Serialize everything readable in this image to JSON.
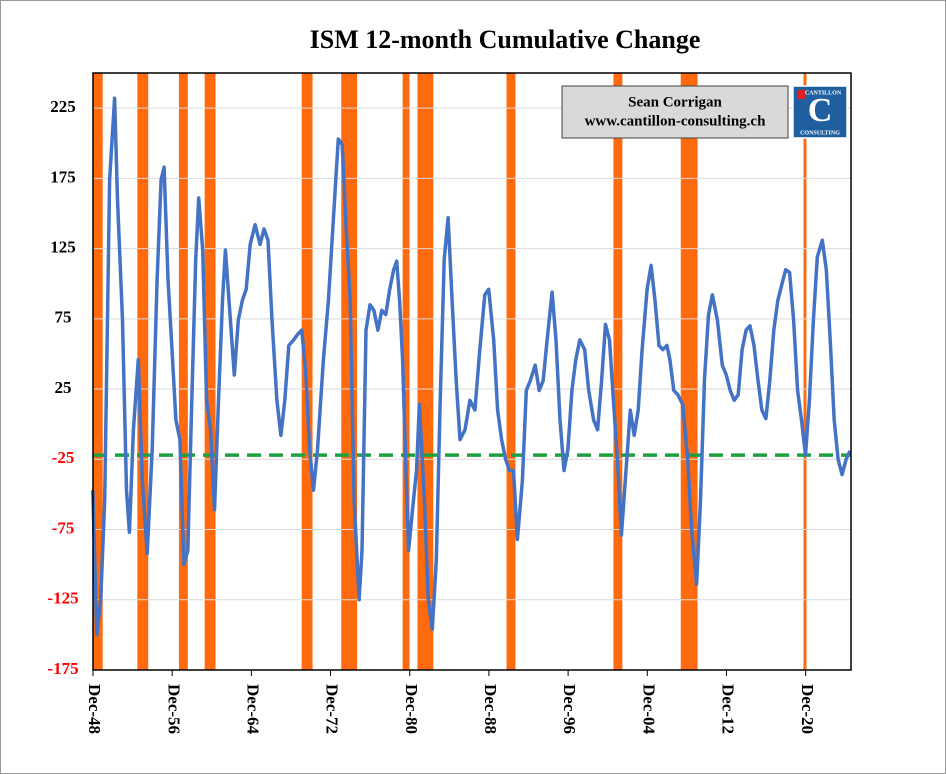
{
  "chart_data": {
    "type": "line",
    "title": "ISM 12-month Cumulative Change",
    "annotation": [
      "Sean Corrigan",
      "www.cantillon-consulting.ch"
    ],
    "logo": [
      "CANTILLON",
      "CONSULTING"
    ],
    "xlim": [
      1948.92,
      2025.5
    ],
    "ylim": [
      -175,
      250
    ],
    "yticks": [
      -175,
      -125,
      -75,
      -25,
      25,
      75,
      125,
      175,
      225
    ],
    "tick_color": "#000000",
    "negative_tick_color": "#ff0000",
    "xticks": [
      {
        "value": 1948.92,
        "label": "Dec-48"
      },
      {
        "value": 1956.92,
        "label": "Dec-56"
      },
      {
        "value": 1964.92,
        "label": "Dec-64"
      },
      {
        "value": 1972.92,
        "label": "Dec-72"
      },
      {
        "value": 1980.92,
        "label": "Dec-80"
      },
      {
        "value": 1988.92,
        "label": "Dec-88"
      },
      {
        "value": 1996.92,
        "label": "Dec-96"
      },
      {
        "value": 2004.92,
        "label": "Dec-04"
      },
      {
        "value": 2012.92,
        "label": "Dec-12"
      },
      {
        "value": 2020.92,
        "label": "Dec-20"
      }
    ],
    "reference_line": -22,
    "reference_color": "#1fa040",
    "recession_color": "#ff6a0e",
    "recessions": [
      [
        1948.9,
        1949.9
      ],
      [
        1953.4,
        1954.5
      ],
      [
        1957.6,
        1958.5
      ],
      [
        1960.2,
        1961.3
      ],
      [
        1970.0,
        1971.1
      ],
      [
        1974.0,
        1975.6
      ],
      [
        1980.2,
        1980.9
      ],
      [
        1981.7,
        1983.3
      ],
      [
        1990.7,
        1991.6
      ],
      [
        2001.5,
        2002.4
      ],
      [
        2008.3,
        2010.0
      ],
      [
        2020.7,
        2021.0
      ]
    ],
    "x": [
      1948.9,
      1949.3,
      1949.7,
      1950.1,
      1950.6,
      1951.1,
      1951.4,
      1951.9,
      1952.3,
      1952.6,
      1953.0,
      1953.5,
      1953.9,
      1954.4,
      1954.9,
      1955.4,
      1955.8,
      1956.1,
      1956.5,
      1956.9,
      1957.3,
      1957.7,
      1958.1,
      1958.5,
      1958.9,
      1959.3,
      1959.6,
      1960.0,
      1960.4,
      1960.8,
      1961.2,
      1961.6,
      1962.0,
      1962.3,
      1962.8,
      1963.2,
      1963.6,
      1964.0,
      1964.4,
      1964.8,
      1965.3,
      1965.8,
      1966.2,
      1966.6,
      1967.0,
      1967.5,
      1967.9,
      1968.3,
      1968.7,
      1969.2,
      1969.6,
      1970.0,
      1970.4,
      1970.8,
      1971.2,
      1971.6,
      1972.2,
      1972.7,
      1973.2,
      1973.7,
      1974.1,
      1974.5,
      1974.9,
      1975.3,
      1975.8,
      1976.1,
      1976.5,
      1976.9,
      1977.3,
      1977.7,
      1978.1,
      1978.5,
      1978.9,
      1979.3,
      1979.6,
      1979.9,
      1980.2,
      1980.5,
      1980.8,
      1981.2,
      1981.6,
      1981.9,
      1982.4,
      1982.8,
      1983.2,
      1983.6,
      1984.0,
      1984.4,
      1984.8,
      1985.2,
      1985.6,
      1986.0,
      1986.5,
      1987.0,
      1987.5,
      1988.0,
      1988.5,
      1988.9,
      1989.4,
      1989.8,
      1990.2,
      1990.6,
      1991.0,
      1991.4,
      1991.8,
      1992.3,
      1992.7,
      1993.1,
      1993.6,
      1994.0,
      1994.4,
      1994.8,
      1995.3,
      1995.7,
      1996.1,
      1996.5,
      1996.9,
      1997.3,
      1997.7,
      1998.1,
      1998.6,
      1999.0,
      1999.5,
      1999.9,
      2000.3,
      2000.7,
      2001.1,
      2001.5,
      2001.9,
      2002.3,
      2002.7,
      2003.2,
      2003.6,
      2004.0,
      2004.4,
      2004.9,
      2005.3,
      2005.7,
      2006.1,
      2006.5,
      2006.9,
      2007.2,
      2007.6,
      2008.0,
      2008.5,
      2009.0,
      2009.4,
      2009.9,
      2010.3,
      2010.7,
      2011.1,
      2011.5,
      2012.0,
      2012.5,
      2012.9,
      2013.3,
      2013.7,
      2014.1,
      2014.5,
      2014.9,
      2015.3,
      2015.7,
      2016.1,
      2016.5,
      2016.9,
      2017.3,
      2017.7,
      2018.1,
      2018.5,
      2018.9,
      2019.3,
      2019.7,
      2020.1,
      2020.5,
      2020.9,
      2021.3,
      2021.7,
      2022.1,
      2022.6,
      2023.0,
      2023.4,
      2023.8,
      2024.2,
      2024.6,
      2025.0,
      2025.4
    ],
    "series": [
      {
        "name": "ISM 12-month Cumulative Change",
        "color": "#4472c4",
        "values": [
          -47,
          -150,
          -125,
          -54,
          174,
          232,
          160,
          74,
          -47,
          -77,
          -4,
          46,
          -40,
          -92,
          -18,
          103,
          174,
          183,
          103,
          53,
          3,
          -11,
          -100,
          -90,
          17,
          117,
          161,
          124,
          17,
          -4,
          -61,
          17,
          88,
          124,
          74,
          35,
          74,
          88,
          96,
          128,
          142,
          128,
          139,
          131,
          74,
          17,
          -8,
          17,
          56,
          60,
          64,
          67,
          39,
          -18,
          -47,
          -18,
          46,
          88,
          145,
          203,
          199,
          139,
          88,
          -54,
          -125,
          -90,
          67,
          85,
          81,
          67,
          81,
          78,
          96,
          110,
          116,
          88,
          46,
          -25,
          -90,
          -61,
          -33,
          14,
          -54,
          -125,
          -146,
          -97,
          17,
          117,
          147,
          88,
          32,
          -11,
          -4,
          17,
          10,
          53,
          92,
          96,
          60,
          10,
          -11,
          -25,
          -33,
          -33,
          -82,
          -40,
          24,
          31,
          42,
          24,
          31,
          60,
          94,
          60,
          3,
          -33,
          -18,
          24,
          46,
          60,
          53,
          24,
          3,
          -4,
          31,
          71,
          60,
          17,
          -25,
          -79,
          -40,
          10,
          -8,
          10,
          53,
          96,
          113,
          88,
          56,
          53,
          56,
          46,
          24,
          21,
          14,
          -25,
          -75,
          -114,
          -54,
          32,
          78,
          92,
          74,
          42,
          35,
          24,
          17,
          21,
          53,
          67,
          70,
          56,
          31,
          10,
          4,
          31,
          67,
          88,
          99,
          110,
          108,
          74,
          24,
          3,
          -22,
          17,
          74,
          119,
          131,
          110,
          60,
          3,
          -25,
          -36,
          -25,
          -19
        ]
      }
    ]
  }
}
